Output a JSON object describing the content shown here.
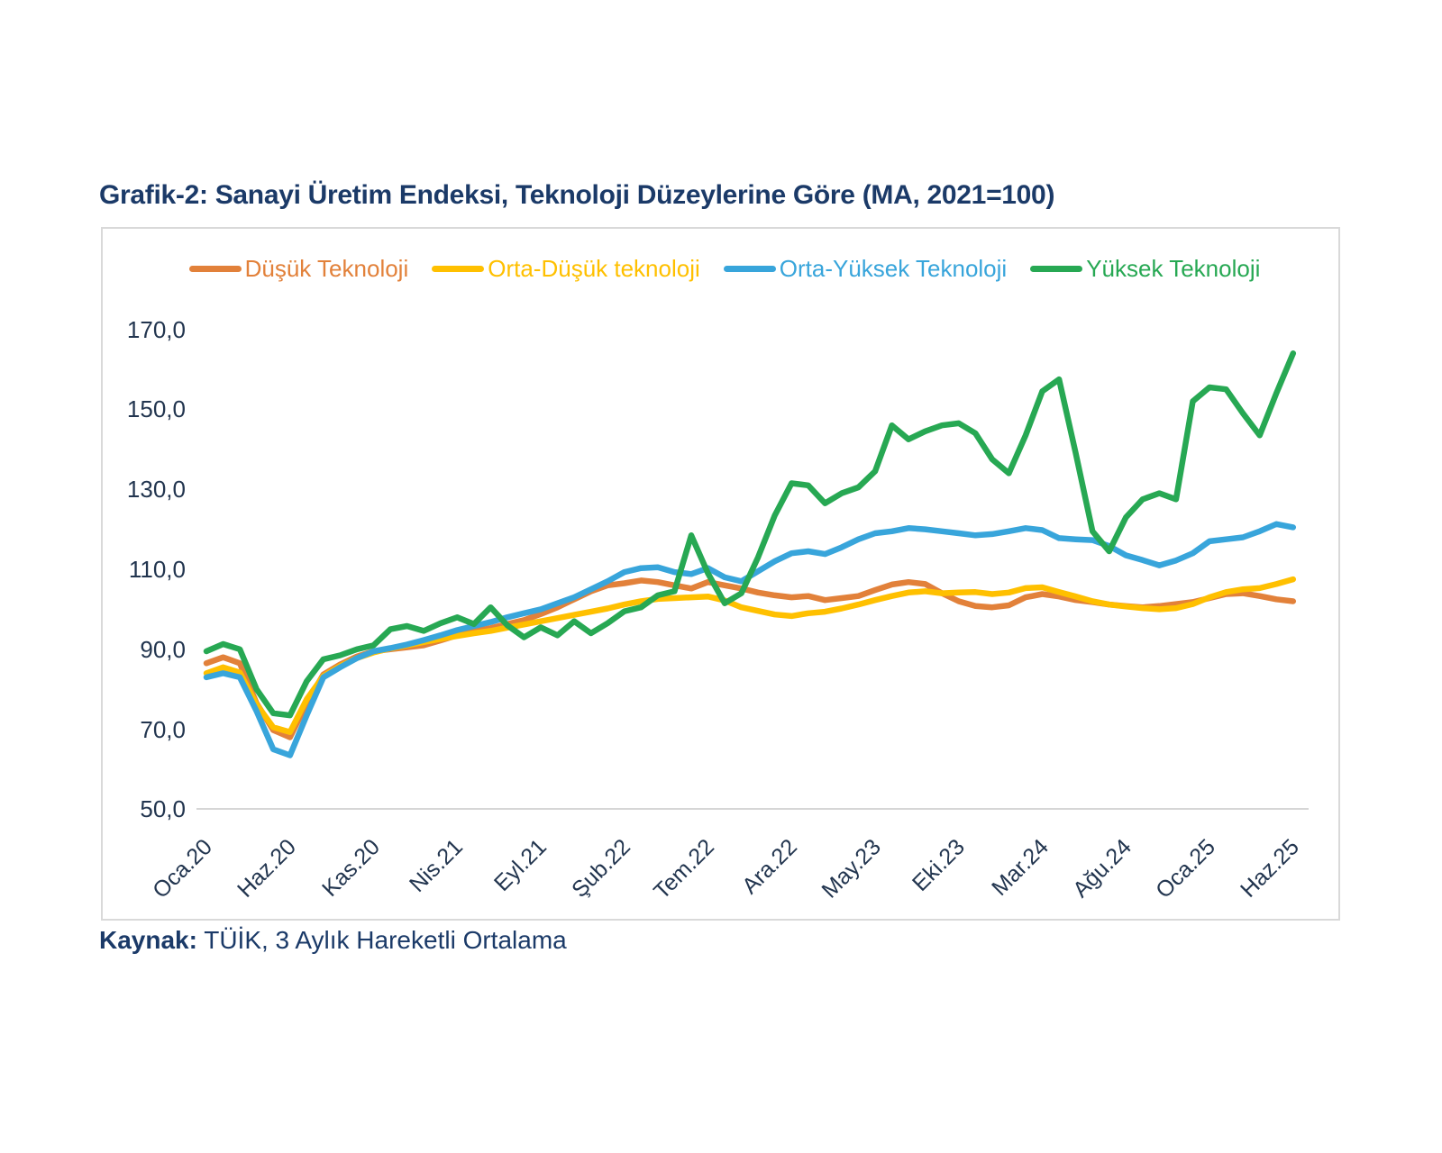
{
  "title": "Grafik-2: Sanayi Üretim Endeksi, Teknoloji Düzeylerine Göre (MA, 2021=100)",
  "source": {
    "label": "Kaynak:",
    "text": " TÜİK, 3 Aylık Hareketli Ortalama"
  },
  "chart_data": {
    "type": "line",
    "title": "Grafik-2: Sanayi Üretim Endeksi, Teknoloji Düzeylerine Göre (MA, 2021=100)",
    "x_description": "Monthly data, Jan 2020 - Jun 2025 (66 points), ticks every 5 months",
    "x_tick_labels": [
      "Oca.20",
      "Haz.20",
      "Kas.20",
      "Nis.21",
      "Eyl.21",
      "Şub.22",
      "Tem.22",
      "Ara.22",
      "May.23",
      "Eki.23",
      "Mar.24",
      "Ağu.24",
      "Oca.25",
      "Haz.25"
    ],
    "x_tick_every_n_points": 5,
    "ylim": [
      50,
      170
    ],
    "ytick_values": [
      170,
      150,
      130,
      110,
      90,
      70,
      50
    ],
    "ytick_labels": [
      "170,0",
      "150,0",
      "130,0",
      "110,0",
      "90,0",
      "70,0",
      "50,0"
    ],
    "grid": "off",
    "legend_position": "top",
    "axis_line_color": "#d6d6d6",
    "text_color_title": "#1b3a68",
    "text_color_axis": "#22354f",
    "series": [
      {
        "name": "Düşük Teknoloji",
        "color": "#e2813a",
        "values": [
          86.5,
          88,
          86.5,
          76.5,
          69.8,
          68,
          76.5,
          83.7,
          86.2,
          88.2,
          89.5,
          90,
          90.5,
          91,
          92.2,
          93.5,
          94.5,
          95.3,
          96.3,
          97.3,
          98.8,
          100.5,
          102.5,
          104.5,
          106,
          106.5,
          107.2,
          106.8,
          106,
          105.2,
          106.8,
          106,
          105.2,
          104.2,
          103.5,
          103,
          103.3,
          102.3,
          102.8,
          103.3,
          104.8,
          106.2,
          106.8,
          106.3,
          104,
          102,
          100.8,
          100.5,
          101,
          103,
          103.8,
          103.2,
          102.3,
          101.8,
          101.2,
          100.8,
          100.5,
          100.8,
          101.3,
          101.8,
          102.8,
          103.8,
          104,
          103.3,
          102.5,
          102
        ]
      },
      {
        "name": "Orta-Düşük teknoloji",
        "color": "#ffc000",
        "values": [
          84,
          85.5,
          84.2,
          76.2,
          70.5,
          69.3,
          77.5,
          83.3,
          85.8,
          87.8,
          89.2,
          90.2,
          91,
          91.8,
          92.6,
          93.3,
          94,
          94.6,
          95.4,
          96.2,
          97,
          97.8,
          98.6,
          99.4,
          100.2,
          101.2,
          102,
          102.6,
          102.8,
          103,
          103.2,
          102.2,
          100.5,
          99.6,
          98.7,
          98.3,
          99,
          99.4,
          100.2,
          101.2,
          102.3,
          103.3,
          104.2,
          104.5,
          104,
          104.2,
          104.3,
          103.8,
          104.2,
          105.3,
          105.5,
          104.3,
          103.2,
          102,
          101.2,
          100.7,
          100.3,
          100,
          100.3,
          101.3,
          103,
          104.3,
          105,
          105.3,
          106.3,
          107.5
        ]
      },
      {
        "name": "Orta-Yüksek Teknoloji",
        "color": "#38a5db",
        "values": [
          83,
          84,
          83,
          74.5,
          65,
          63.5,
          73.5,
          83,
          85.5,
          87.8,
          89.5,
          90.3,
          91.2,
          92.3,
          93.5,
          94.8,
          95.8,
          96.8,
          98,
          99,
          100,
          101.5,
          103,
          105,
          107,
          109.3,
          110.3,
          110.5,
          109.3,
          108.8,
          110.3,
          108,
          107,
          109.5,
          112,
          114,
          114.5,
          113.8,
          115.5,
          117.5,
          119,
          119.5,
          120.3,
          120,
          119.5,
          119,
          118.5,
          118.8,
          119.5,
          120.3,
          119.8,
          117.8,
          117.5,
          117.3,
          115.8,
          113.5,
          112.3,
          111,
          112.2,
          114,
          117,
          117.5,
          118,
          119.5,
          121.3,
          120.5
        ]
      },
      {
        "name": "Yüksek Teknoloji",
        "color": "#27a853",
        "values": [
          89.5,
          91.3,
          90,
          80,
          74,
          73.5,
          82,
          87.5,
          88.5,
          90,
          91,
          95,
          95.8,
          94.6,
          96.5,
          98,
          96.3,
          100.5,
          96,
          93,
          95.5,
          93.5,
          97,
          94,
          96.5,
          99.5,
          100.5,
          103.5,
          104.5,
          118.5,
          109,
          101.5,
          104,
          113,
          123.5,
          131.5,
          131,
          126.5,
          129,
          130.5,
          134.5,
          146,
          142.5,
          144.5,
          146,
          146.5,
          144,
          137.5,
          134,
          143.5,
          154.5,
          157.5,
          139,
          119.5,
          114.5,
          123,
          127.5,
          129,
          127.5,
          152,
          155.5,
          155,
          149,
          143.5,
          154,
          164
        ]
      }
    ]
  }
}
